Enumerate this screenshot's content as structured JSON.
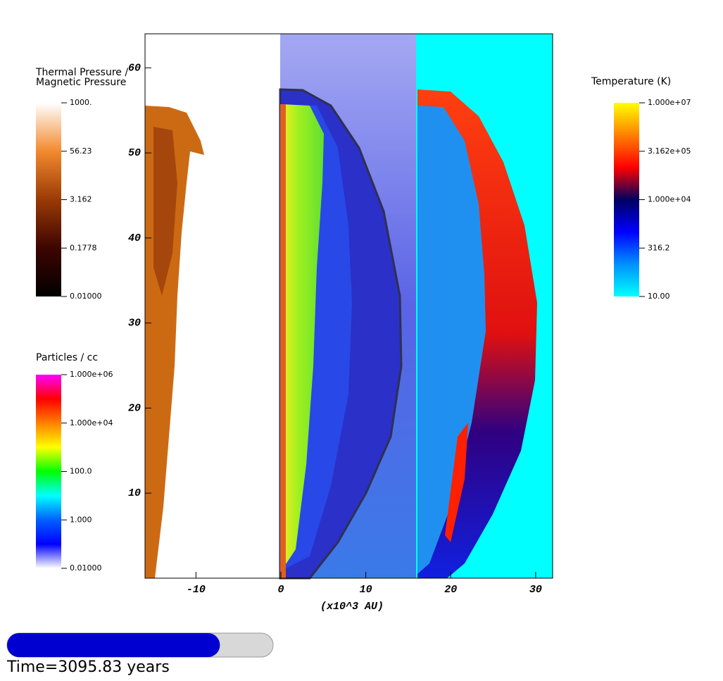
{
  "chart_data": {
    "type": "field-plot",
    "xlabel": "(x10^3 AU)",
    "xlim": [
      -16,
      32
    ],
    "xticks": [
      -10,
      0,
      10,
      20,
      30
    ],
    "ylim": [
      0,
      64
    ],
    "yticks": [
      10,
      20,
      30,
      40,
      50,
      60
    ],
    "colorbars": [
      {
        "title": [
          "Thermal Pressure /",
          "Magnetic Pressure"
        ],
        "log": true,
        "clim": [
          0.01,
          1000
        ],
        "ticks": [
          {
            "value": 1000,
            "label": "1000."
          },
          56.23,
          3.162,
          0.1778,
          {
            "value": 0.01,
            "label": "0.01000"
          }
        ],
        "colors": [
          "#ffffff",
          "#f28a2e",
          "#9a3a05",
          "#3d0500",
          "#000000"
        ]
      },
      {
        "title": [
          "Particles / cc"
        ],
        "log": true,
        "clim": [
          0.01,
          1000000
        ],
        "ticks": [
          {
            "value": 1000000,
            "label": "1.000e+06"
          },
          {
            "value": 10000,
            "label": "1.000e+04"
          },
          {
            "value": 100,
            "label": "100.0"
          },
          {
            "value": 1,
            "label": "1.000"
          },
          {
            "value": 0.01,
            "label": "0.01000"
          }
        ],
        "colors": [
          "#ff00ff",
          "#ff0000",
          "#ff8000",
          "#ffff00",
          "#00ff00",
          "#00ffff",
          "#0060ff",
          "#0000ff",
          "#ffffff"
        ]
      },
      {
        "title": [
          "Temperature (K)"
        ],
        "log": true,
        "clim": [
          10,
          10000000
        ],
        "ticks": [
          {
            "value": 10000000,
            "label": "1.000e+07"
          },
          {
            "value": 316200,
            "label": "3.162e+05"
          },
          {
            "value": 10000,
            "label": "1.000e+04"
          },
          316.2,
          {
            "value": 10,
            "label": "10.00"
          }
        ],
        "colors": [
          "#ffff00",
          "#ff8000",
          "#ff0000",
          "#000060",
          "#0000ff",
          "#0090ff",
          "#00ffff"
        ]
      }
    ],
    "time_label": "Time=3095.83 years",
    "time_progress": 0.8
  }
}
